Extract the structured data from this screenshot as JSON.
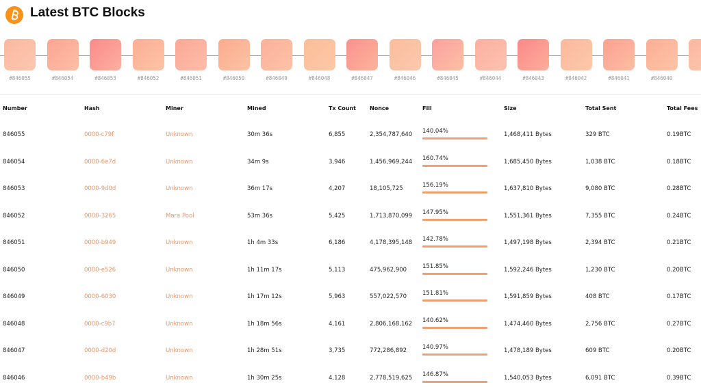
{
  "header": {
    "title": "Latest BTC Blocks"
  },
  "blocks": [
    "#846055",
    "#846054",
    "#846053",
    "#846052",
    "#846051",
    "#846050",
    "#846049",
    "#846048",
    "#846047",
    "#846046",
    "#846045",
    "#846044",
    "#846043",
    "#846042",
    "#846041",
    "#846040"
  ],
  "table": {
    "columns": [
      "Number",
      "Hash",
      "Miner",
      "Mined",
      "Tx Count",
      "Nonce",
      "Fill",
      "Size",
      "Total Sent",
      "Total Fees"
    ],
    "rows": [
      [
        "846055",
        "0000-c79f",
        "Unknown",
        "30m 36s",
        "6,855",
        "2,354,787,640",
        "140.04%",
        "1,468,411 Bytes",
        "329 BTC",
        "0.19BTC"
      ],
      [
        "846054",
        "0000-6e7d",
        "Unknown",
        "34m 9s",
        "3,946",
        "1,456,969,244",
        "160.74%",
        "1,685,450 Bytes",
        "1,038 BTC",
        "0.18BTC"
      ],
      [
        "846053",
        "0000-9d0d",
        "Unknown",
        "36m 17s",
        "4,207",
        "18,105,725",
        "156.19%",
        "1,637,810 Bytes",
        "9,080 BTC",
        "0.28BTC"
      ],
      [
        "846052",
        "0000-3265",
        "Mara Pool",
        "53m 36s",
        "5,425",
        "1,713,870,099",
        "147.95%",
        "1,551,361 Bytes",
        "7,355 BTC",
        "0.24BTC"
      ],
      [
        "846051",
        "0000-b949",
        "Unknown",
        "1h 4m 33s",
        "6,186",
        "4,178,395,148",
        "142.78%",
        "1,497,198 Bytes",
        "2,394 BTC",
        "0.21BTC"
      ],
      [
        "846050",
        "0000-e526",
        "Unknown",
        "1h 11m 17s",
        "5,113",
        "475,962,900",
        "151.85%",
        "1,592,246 Bytes",
        "1,230 BTC",
        "0.20BTC"
      ],
      [
        "846049",
        "0000-6030",
        "Unknown",
        "1h 17m 12s",
        "5,963",
        "557,022,570",
        "151.81%",
        "1,591,859 Bytes",
        "408 BTC",
        "0.17BTC"
      ],
      [
        "846048",
        "0000-c9b7",
        "Unknown",
        "1h 18m 56s",
        "4,161",
        "2,806,168,162",
        "140.62%",
        "1,474,460 Bytes",
        "2,756 BTC",
        "0.27BTC"
      ],
      [
        "846047",
        "0000-d20d",
        "Unknown",
        "1h 28m 51s",
        "3,735",
        "772,286,892",
        "140.97%",
        "1,478,189 Bytes",
        "609 BTC",
        "0.20BTC"
      ],
      [
        "846046",
        "0000-b49b",
        "Unknown",
        "1h 30m 25s",
        "4,128",
        "2,778,519,625",
        "146.87%",
        "1,540,053 Bytes",
        "6,091 BTC",
        "0.39BTC"
      ]
    ]
  }
}
